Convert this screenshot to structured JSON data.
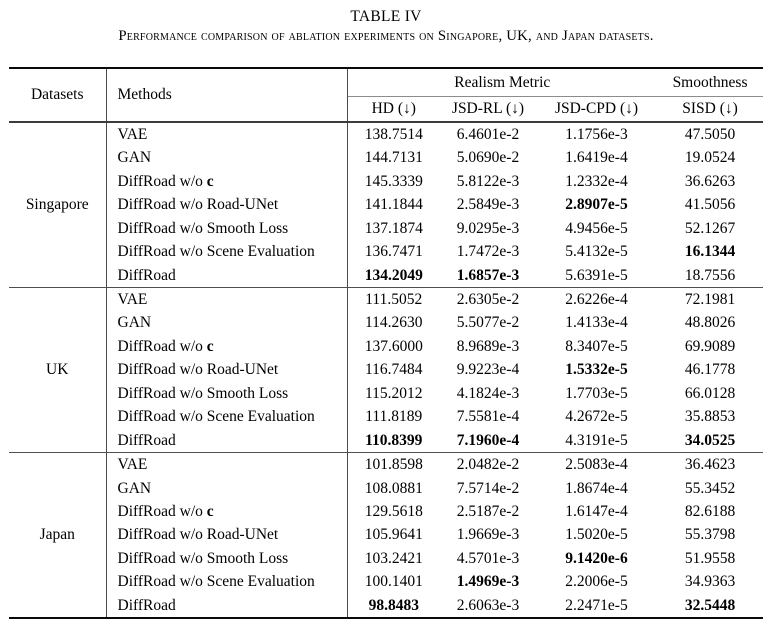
{
  "title": "TABLE IV",
  "caption": "Performance comparison of ablation experiments on Singapore, UK, and Japan datasets.",
  "table": {
    "headers": {
      "datasets": "Datasets",
      "methods": "Methods",
      "realism_group": "Realism Metric",
      "smoothness_group": "Smoothness",
      "metrics": [
        "HD (↓)",
        "JSD-RL (↓)",
        "JSD-CPD (↓)",
        "SISD (↓)"
      ],
      "metric_keys": [
        "hd",
        "jsd-rl",
        "jsd-cpd",
        "sisd"
      ]
    },
    "groups": [
      {
        "dataset": "Singapore",
        "rows": [
          {
            "method": "VAE",
            "values": [
              "138.7514",
              "6.4601e-2",
              "1.1756e-3",
              "47.5050"
            ],
            "bold": []
          },
          {
            "method": "GAN",
            "values": [
              "144.7131",
              "5.0690e-2",
              "1.6419e-4",
              "19.0524"
            ],
            "bold": []
          },
          {
            "method": "DiffRoad w/o ",
            "method_bold": "c",
            "values": [
              "145.3339",
              "5.8122e-3",
              "1.2332e-4",
              "36.6263"
            ],
            "bold": []
          },
          {
            "method": "DiffRoad w/o Road-UNet",
            "values": [
              "141.1844",
              "2.5849e-3",
              "2.8907e-5",
              "41.5056"
            ],
            "bold": [
              2
            ]
          },
          {
            "method": "DiffRoad w/o Smooth Loss",
            "values": [
              "137.1874",
              "9.0295e-3",
              "4.9456e-5",
              "52.1267"
            ],
            "bold": []
          },
          {
            "method": "DiffRoad w/o Scene Evaluation",
            "values": [
              "136.7471",
              "1.7472e-3",
              "5.4132e-5",
              "16.1344"
            ],
            "bold": [
              3
            ]
          },
          {
            "method": "DiffRoad",
            "values": [
              "134.2049",
              "1.6857e-3",
              "5.6391e-5",
              "18.7556"
            ],
            "bold": [
              0,
              1
            ]
          }
        ]
      },
      {
        "dataset": "UK",
        "rows": [
          {
            "method": "VAE",
            "values": [
              "111.5052",
              "2.6305e-2",
              "2.6226e-4",
              "72.1981"
            ],
            "bold": []
          },
          {
            "method": "GAN",
            "values": [
              "114.2630",
              "5.5077e-2",
              "1.4133e-4",
              "48.8026"
            ],
            "bold": []
          },
          {
            "method": "DiffRoad w/o ",
            "method_bold": "c",
            "values": [
              "137.6000",
              "8.9689e-3",
              "8.3407e-5",
              "69.9089"
            ],
            "bold": []
          },
          {
            "method": "DiffRoad w/o Road-UNet",
            "values": [
              "116.7484",
              "9.9223e-4",
              "1.5332e-5",
              "46.1778"
            ],
            "bold": [
              2
            ]
          },
          {
            "method": "DiffRoad w/o Smooth Loss",
            "values": [
              "115.2012",
              "4.1824e-3",
              "1.7703e-5",
              "66.0128"
            ],
            "bold": []
          },
          {
            "method": "DiffRoad w/o Scene Evaluation",
            "values": [
              "111.8189",
              "7.5581e-4",
              "4.2672e-5",
              "35.8853"
            ],
            "bold": []
          },
          {
            "method": "DiffRoad",
            "values": [
              "110.8399",
              "7.1960e-4",
              "4.3191e-5",
              "34.0525"
            ],
            "bold": [
              0,
              1,
              3
            ]
          }
        ]
      },
      {
        "dataset": "Japan",
        "rows": [
          {
            "method": "VAE",
            "values": [
              "101.8598",
              "2.0482e-2",
              "2.5083e-4",
              "36.4623"
            ],
            "bold": []
          },
          {
            "method": "GAN",
            "values": [
              "108.0881",
              "7.5714e-2",
              "1.8674e-4",
              "55.3452"
            ],
            "bold": []
          },
          {
            "method": "DiffRoad w/o ",
            "method_bold": "c",
            "values": [
              "129.5618",
              "2.5187e-2",
              "1.6147e-4",
              "82.6188"
            ],
            "bold": []
          },
          {
            "method": "DiffRoad w/o Road-UNet",
            "values": [
              "105.9641",
              "1.9669e-3",
              "1.5020e-5",
              "55.3798"
            ],
            "bold": []
          },
          {
            "method": "DiffRoad w/o Smooth Loss",
            "values": [
              "103.2421",
              "4.5701e-3",
              "9.1420e-6",
              "51.9558"
            ],
            "bold": [
              2
            ]
          },
          {
            "method": "DiffRoad w/o Scene Evaluation",
            "values": [
              "100.1401",
              "1.4969e-3",
              "2.2006e-5",
              "34.9363"
            ],
            "bold": [
              1
            ]
          },
          {
            "method": "DiffRoad",
            "values": [
              "98.8483",
              "2.6063e-3",
              "2.2471e-5",
              "32.5448"
            ],
            "bold": [
              0,
              3
            ]
          }
        ]
      }
    ]
  }
}
